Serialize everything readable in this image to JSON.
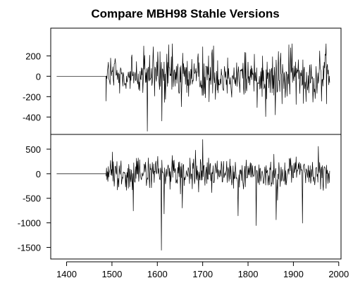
{
  "chart_data": {
    "type": "line",
    "title": "Compare MBH98 Stahle Versions",
    "xlabel": "",
    "x_ticks": [
      1400,
      1500,
      1600,
      1700,
      1800,
      1900,
      2000
    ],
    "xlim": [
      1365,
      2005
    ],
    "panels": [
      {
        "name": "upper",
        "ylabel": "",
        "ylim": [
          -550,
          320
        ],
        "y_ticks": [
          200,
          0,
          -200,
          -400
        ],
        "flat_segment": {
          "x_start": 1378,
          "x_end": 1487,
          "y": 0
        },
        "series_range": [
          1487,
          1980
        ],
        "noise_amplitude": 120,
        "spikes": [
          {
            "x": 1578,
            "y": -540
          },
          {
            "x": 1610,
            "y": -440
          },
          {
            "x": 1591,
            "y": 290
          },
          {
            "x": 1700,
            "y": 290
          },
          {
            "x": 1724,
            "y": 300
          },
          {
            "x": 1860,
            "y": -380
          },
          {
            "x": 1890,
            "y": 310
          },
          {
            "x": 1928,
            "y": -250
          },
          {
            "x": 1958,
            "y": 250
          }
        ]
      },
      {
        "name": "lower",
        "ylabel": "",
        "ylim": [
          -1650,
          700
        ],
        "y_ticks": [
          500,
          0,
          -500,
          -1000,
          -1500
        ],
        "flat_segment": {
          "x_start": 1378,
          "x_end": 1487,
          "y": 0
        },
        "series_range": [
          1487,
          1980
        ],
        "noise_amplitude": 170,
        "spikes": [
          {
            "x": 1609,
            "y": -1560
          },
          {
            "x": 1700,
            "y": 700
          },
          {
            "x": 1818,
            "y": -1060
          },
          {
            "x": 1862,
            "y": -940
          },
          {
            "x": 1920,
            "y": -1010
          },
          {
            "x": 1955,
            "y": 560
          },
          {
            "x": 1547,
            "y": -760
          },
          {
            "x": 1615,
            "y": -820
          },
          {
            "x": 1655,
            "y": -700
          },
          {
            "x": 1778,
            "y": -860
          }
        ]
      }
    ]
  }
}
